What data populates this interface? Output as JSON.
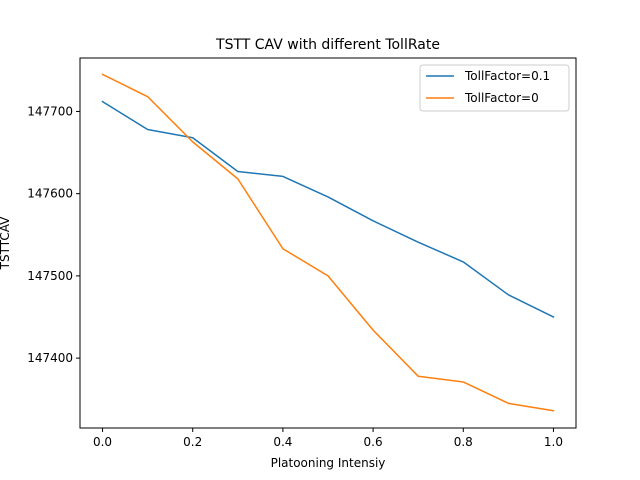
{
  "chart_data": {
    "type": "line",
    "title": "TSTT CAV with different TollRate",
    "xlabel": "Platooning Intensiy",
    "ylabel": "TSTTCAV",
    "xlim": [
      -0.05,
      1.05
    ],
    "ylim": [
      147315,
      147765
    ],
    "xticks": [
      0.0,
      0.2,
      0.4,
      0.6,
      0.8,
      1.0
    ],
    "xtick_labels": [
      "0.0",
      "0.2",
      "0.4",
      "0.6",
      "0.8",
      "1.0"
    ],
    "yticks": [
      147400,
      147500,
      147600,
      147700
    ],
    "ytick_labels": [
      "147400",
      "147500",
      "147600",
      "147700"
    ],
    "grid": false,
    "legend_position": "top-right",
    "x": [
      0.0,
      0.1,
      0.2,
      0.3,
      0.4,
      0.5,
      0.6,
      0.7,
      0.8,
      0.9,
      1.0
    ],
    "series": [
      {
        "name": "TollFactor=0.1",
        "color": "#1f77b4",
        "values": [
          147712,
          147678,
          147668,
          147627,
          147621,
          147596,
          147567,
          147541,
          147517,
          147477,
          147450
        ]
      },
      {
        "name": "TollFactor=0",
        "color": "#ff7f0e",
        "values": [
          147745,
          147718,
          147663,
          147618,
          147533,
          147500,
          147434,
          147378,
          147371,
          147345,
          147336
        ]
      }
    ]
  }
}
